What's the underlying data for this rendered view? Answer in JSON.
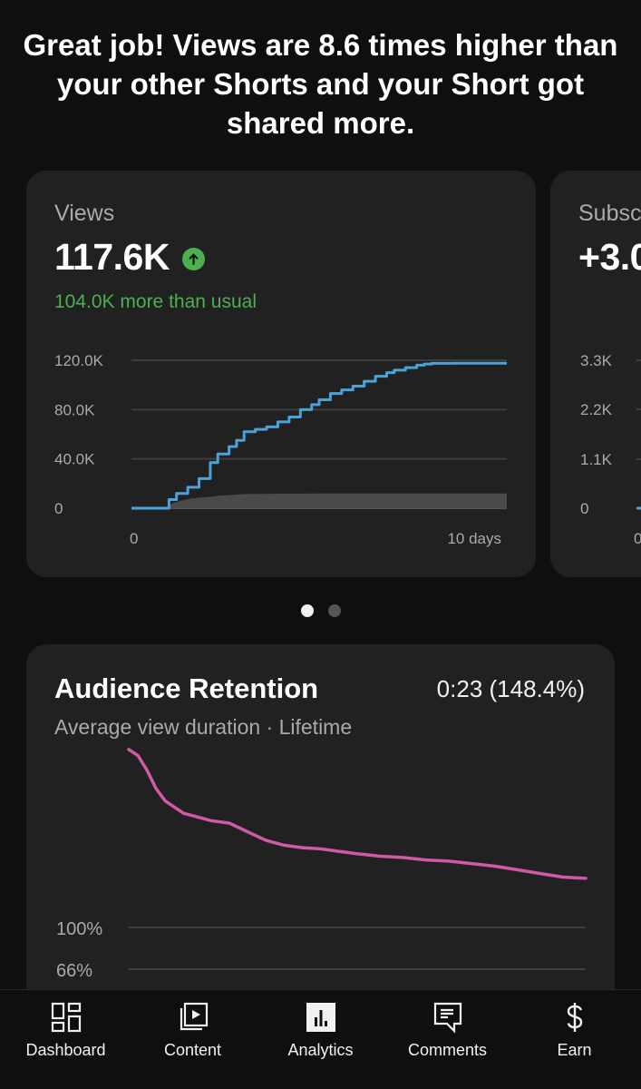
{
  "headline": "Great job! Views are 8.6 times higher than your other Shorts and your Short got shared more.",
  "views_card": {
    "label": "Views",
    "value": "117.6K",
    "note": "104.0K more than usual",
    "y_ticks": [
      "120.0K",
      "80.0K",
      "40.0K",
      "0"
    ],
    "x_ticks": [
      "0",
      "10 days"
    ]
  },
  "subs_card": {
    "label": "Subsc",
    "value": "+3.0",
    "y_ticks": [
      "3.3K",
      "2.2K",
      "1.1K",
      "0"
    ],
    "x_start": "0"
  },
  "pager": {
    "count": 2,
    "active": 1
  },
  "retention_card": {
    "title": "Audience Retention",
    "value": "0:23 (148.4%)",
    "subtitle": "Average view duration · Lifetime",
    "y_ticks": [
      "100%",
      "66%"
    ]
  },
  "nav": [
    {
      "label": "Dashboard",
      "icon": "dashboard-icon"
    },
    {
      "label": "Content",
      "icon": "content-icon"
    },
    {
      "label": "Analytics",
      "icon": "analytics-icon"
    },
    {
      "label": "Comments",
      "icon": "comments-icon"
    },
    {
      "label": "Earn",
      "icon": "earn-icon"
    }
  ],
  "colors": {
    "views_line": "#4aa3d8",
    "typical_band": "#4a4a4a",
    "retention_line": "#d05aa6",
    "positive": "#4caf50",
    "card_bg": "#212121",
    "page_bg": "#0f0f0f"
  },
  "chart_data": [
    {
      "type": "line",
      "title": "Views",
      "xlabel": "",
      "ylabel": "",
      "x_unit": "days",
      "xlim": [
        0,
        10
      ],
      "ylim": [
        0,
        120000
      ],
      "yticks": [
        0,
        40000,
        80000,
        120000
      ],
      "grid": true,
      "series": [
        {
          "name": "",
          "x": [
            0,
            0.8,
            1.0,
            1.2,
            1.5,
            1.8,
            2.1,
            2.3,
            2.6,
            2.8,
            3.0,
            3.3,
            3.6,
            3.9,
            4.2,
            4.5,
            4.8,
            5.0,
            5.3,
            5.6,
            5.9,
            6.2,
            6.5,
            6.8,
            7.0,
            7.3,
            7.6,
            7.8,
            8.0,
            8.3,
            8.6,
            8.8,
            9.0,
            9.5,
            10.0
          ],
          "y": [
            0,
            0,
            7000,
            12000,
            17000,
            24000,
            37000,
            44000,
            50000,
            55000,
            62000,
            64000,
            66000,
            70000,
            74000,
            80000,
            84000,
            88000,
            93000,
            96000,
            99000,
            103000,
            107000,
            110000,
            112000,
            114000,
            116000,
            117000,
            117500,
            117500,
            117600,
            117600,
            117600,
            117600,
            117600
          ]
        },
        {
          "name": "",
          "x": [
            0,
            0.9,
            1.1,
            1.3,
            1.6,
            2.0,
            2.3,
            3.0,
            5.0,
            7.5,
            10.0
          ],
          "y": [
            0,
            0,
            4000,
            6000,
            8000,
            9000,
            10000,
            11500,
            12000,
            12000,
            12000
          ]
        }
      ]
    },
    {
      "type": "line",
      "title": "Audience Retention",
      "xlabel": "",
      "ylabel": "",
      "yticks_labels": [
        "100%",
        "66%"
      ],
      "grid": true,
      "series": [
        {
          "name": "",
          "x": [
            0,
            0.02,
            0.04,
            0.06,
            0.08,
            0.1,
            0.12,
            0.15,
            0.18,
            0.22,
            0.26,
            0.3,
            0.34,
            0.38,
            0.42,
            0.46,
            0.5,
            0.55,
            0.6,
            0.65,
            0.7,
            0.75,
            0.8,
            0.85,
            0.9,
            0.95,
            1.0
          ],
          "y": [
            245,
            240,
            228,
            213,
            203,
            198,
            193,
            190,
            187,
            185,
            178,
            171,
            167,
            165,
            164,
            162,
            160,
            158,
            157,
            155,
            154,
            152,
            150,
            147,
            144,
            141,
            140
          ]
        }
      ]
    }
  ]
}
